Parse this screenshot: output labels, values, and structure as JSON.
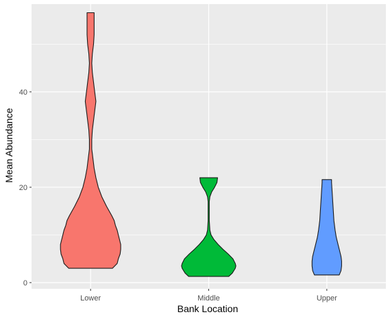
{
  "chart_data": {
    "type": "violin",
    "title": "",
    "xlabel": "Bank Location",
    "ylabel": "Mean Abundance",
    "categories": [
      "Lower",
      "Middle",
      "Upper"
    ],
    "colors": [
      "#F8766D",
      "#00BA38",
      "#619CFF"
    ],
    "ylim": [
      -1.3,
      58.4
    ],
    "yticks": [
      0,
      20,
      40
    ],
    "grid": true,
    "legend": "none",
    "violins": [
      {
        "name": "Lower",
        "profile": [
          [
            3.0,
            0.37
          ],
          [
            4.0,
            0.45
          ],
          [
            5.0,
            0.47
          ],
          [
            6.0,
            0.5
          ],
          [
            7.0,
            0.51
          ],
          [
            8.0,
            0.51
          ],
          [
            9.0,
            0.49
          ],
          [
            10.0,
            0.47
          ],
          [
            11.0,
            0.45
          ],
          [
            12.0,
            0.42
          ],
          [
            13.0,
            0.4
          ],
          [
            14.0,
            0.36
          ],
          [
            16.0,
            0.27
          ],
          [
            18.0,
            0.19
          ],
          [
            20.0,
            0.13
          ],
          [
            22.0,
            0.09
          ],
          [
            24.0,
            0.06
          ],
          [
            26.0,
            0.04
          ],
          [
            28.0,
            0.02
          ],
          [
            30.0,
            0.02
          ],
          [
            32.0,
            0.03
          ],
          [
            34.0,
            0.05
          ],
          [
            36.0,
            0.07
          ],
          [
            38.0,
            0.09
          ],
          [
            40.0,
            0.07
          ],
          [
            42.0,
            0.05
          ],
          [
            44.0,
            0.03
          ],
          [
            46.0,
            0.02
          ],
          [
            48.0,
            0.03
          ],
          [
            50.0,
            0.05
          ],
          [
            52.0,
            0.06
          ],
          [
            54.0,
            0.06
          ],
          [
            56.0,
            0.06
          ],
          [
            56.6,
            0.06
          ]
        ]
      },
      {
        "name": "Middle",
        "profile": [
          [
            1.3,
            0.34
          ],
          [
            2.0,
            0.4
          ],
          [
            3.0,
            0.45
          ],
          [
            3.5,
            0.46
          ],
          [
            4.0,
            0.45
          ],
          [
            5.0,
            0.41
          ],
          [
            6.0,
            0.33
          ],
          [
            7.0,
            0.24
          ],
          [
            8.0,
            0.16
          ],
          [
            9.0,
            0.09
          ],
          [
            10.0,
            0.04
          ],
          [
            11.0,
            0.02
          ],
          [
            13.0,
            0.01
          ],
          [
            15.0,
            0.01
          ],
          [
            17.0,
            0.01
          ],
          [
            18.0,
            0.02
          ],
          [
            19.0,
            0.05
          ],
          [
            20.0,
            0.1
          ],
          [
            21.0,
            0.14
          ],
          [
            22.0,
            0.15
          ]
        ]
      },
      {
        "name": "Upper",
        "profile": [
          [
            1.6,
            0.21
          ],
          [
            2.5,
            0.24
          ],
          [
            3.5,
            0.25
          ],
          [
            4.5,
            0.25
          ],
          [
            5.5,
            0.24
          ],
          [
            6.5,
            0.22
          ],
          [
            8.0,
            0.19
          ],
          [
            9.5,
            0.16
          ],
          [
            11.0,
            0.14
          ],
          [
            13.0,
            0.12
          ],
          [
            15.0,
            0.11
          ],
          [
            17.0,
            0.1
          ],
          [
            19.0,
            0.09
          ],
          [
            21.0,
            0.08
          ],
          [
            21.6,
            0.08
          ]
        ]
      }
    ]
  }
}
